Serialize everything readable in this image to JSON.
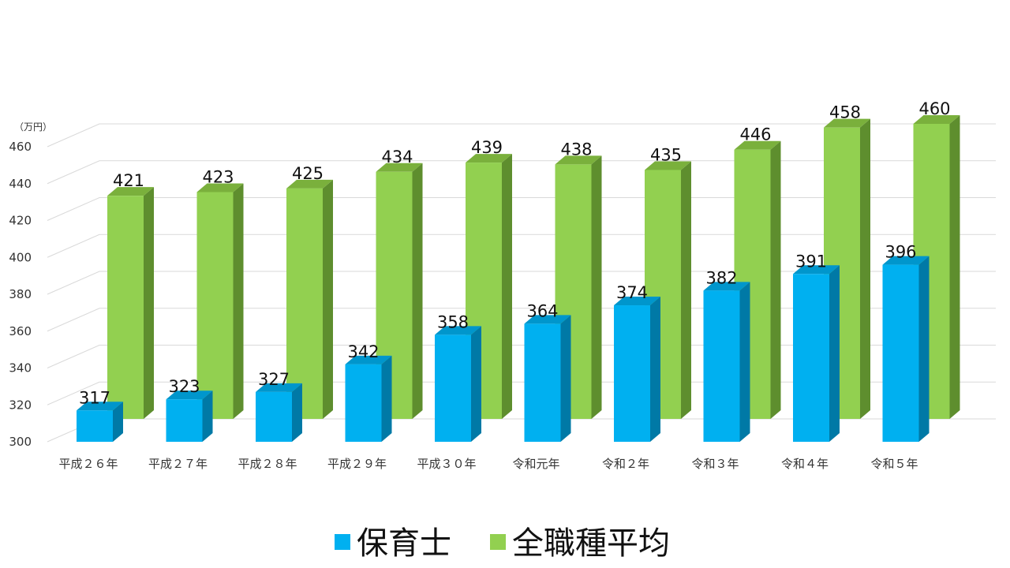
{
  "chart_data": {
    "type": "bar",
    "unit_label": "（万円）",
    "categories": [
      "平成２６年",
      "平成２７年",
      "平成２８年",
      "平成２９年",
      "平成３０年",
      "令和元年",
      "令和２年",
      "令和３年",
      "令和４年",
      "令和５年"
    ],
    "series": [
      {
        "name": "保育士",
        "color": "#00B0F0",
        "side_color": "#0079A6",
        "top_color": "#0096CC",
        "values": [
          317,
          323,
          327,
          342,
          358,
          364,
          374,
          382,
          391,
          396
        ]
      },
      {
        "name": "全職種平均",
        "color": "#92D050",
        "side_color": "#5E8E2E",
        "top_color": "#7AB03C",
        "values": [
          421,
          423,
          425,
          434,
          439,
          438,
          435,
          446,
          458,
          460
        ]
      }
    ],
    "ylim": [
      300,
      460
    ],
    "yticks": [
      300,
      320,
      340,
      360,
      380,
      400,
      420,
      440,
      460
    ],
    "grid": true,
    "legend_position": "bottom"
  }
}
